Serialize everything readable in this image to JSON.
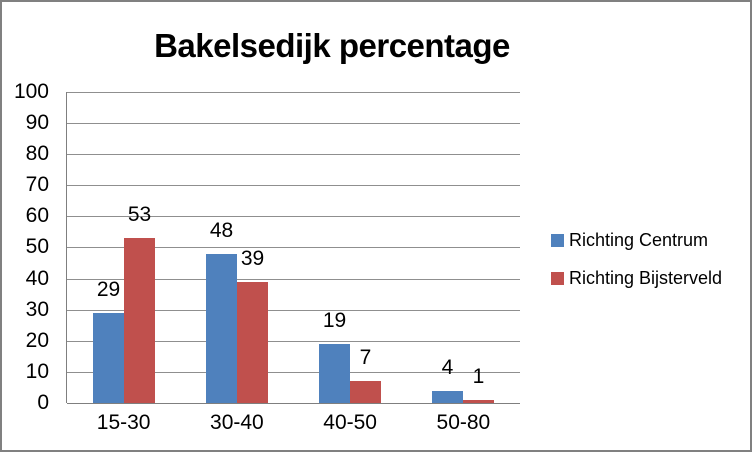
{
  "chart_data": {
    "type": "bar",
    "title": "Bakelsedijk percentage",
    "categories": [
      "15-30",
      "30-40",
      "40-50",
      "50-80"
    ],
    "series": [
      {
        "name": "Richting Centrum",
        "color": "#4F81BD",
        "values": [
          29,
          48,
          19,
          4
        ]
      },
      {
        "name": "Richting Bijsterveld",
        "color": "#C0504D",
        "values": [
          53,
          39,
          7,
          1
        ]
      }
    ],
    "ylim": [
      0,
      100
    ],
    "yticks": [
      0,
      10,
      20,
      30,
      40,
      50,
      60,
      70,
      80,
      90,
      100
    ],
    "xlabel": "",
    "ylabel": "",
    "grid": true,
    "data_labels": true,
    "legend_position": "right"
  },
  "style": {
    "gridline_color": "#8f8f8f",
    "axis_color": "#7f7f7f",
    "frame_border_color": "#808080",
    "background_color": "#ffffff",
    "text_color": "#000000"
  }
}
